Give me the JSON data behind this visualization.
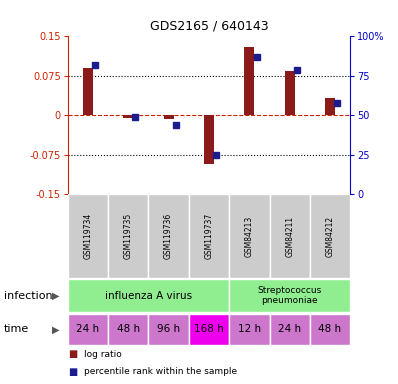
{
  "title": "GDS2165 / 640143",
  "samples": [
    "GSM119734",
    "GSM119735",
    "GSM119736",
    "GSM119737",
    "GSM84213",
    "GSM84211",
    "GSM84212"
  ],
  "log_ratio": [
    0.09,
    -0.005,
    -0.008,
    -0.093,
    0.13,
    0.085,
    0.033
  ],
  "percentile_rank": [
    82,
    49,
    44,
    25,
    87,
    79,
    58
  ],
  "ylim_left": [
    -0.15,
    0.15
  ],
  "ylim_right": [
    0,
    100
  ],
  "yticks_left": [
    -0.15,
    -0.075,
    0,
    0.075,
    0.15
  ],
  "yticks_right": [
    0,
    25,
    50,
    75,
    100
  ],
  "ytick_labels_left": [
    "-0.15",
    "-0.075",
    "0",
    "0.075",
    "0.15"
  ],
  "ytick_labels_right": [
    "0",
    "25",
    "50",
    "75",
    "100%"
  ],
  "hline_dotted": [
    0.075,
    -0.075
  ],
  "hline_dashed": 0.0,
  "bar_color": "#8B1A1A",
  "dot_color": "#1C1C8C",
  "infection_flu_label": "influenza A virus",
  "infection_strep_label": "Streptococcus\npneumoniae",
  "infection_color": "#90EE90",
  "time_labels": [
    "24 h",
    "48 h",
    "96 h",
    "168 h",
    "12 h",
    "24 h",
    "48 h"
  ],
  "time_colors": [
    "#CC77CC",
    "#CC77CC",
    "#CC77CC",
    "#EE00EE",
    "#CC77CC",
    "#CC77CC",
    "#CC77CC"
  ],
  "infection_label": "infection",
  "time_label": "time",
  "legend_bar_label": "log ratio",
  "legend_dot_label": "percentile rank within the sample",
  "left_axis_color": "#CC2200",
  "right_axis_color": "#0000CC",
  "sample_box_color": "#CCCCCC"
}
